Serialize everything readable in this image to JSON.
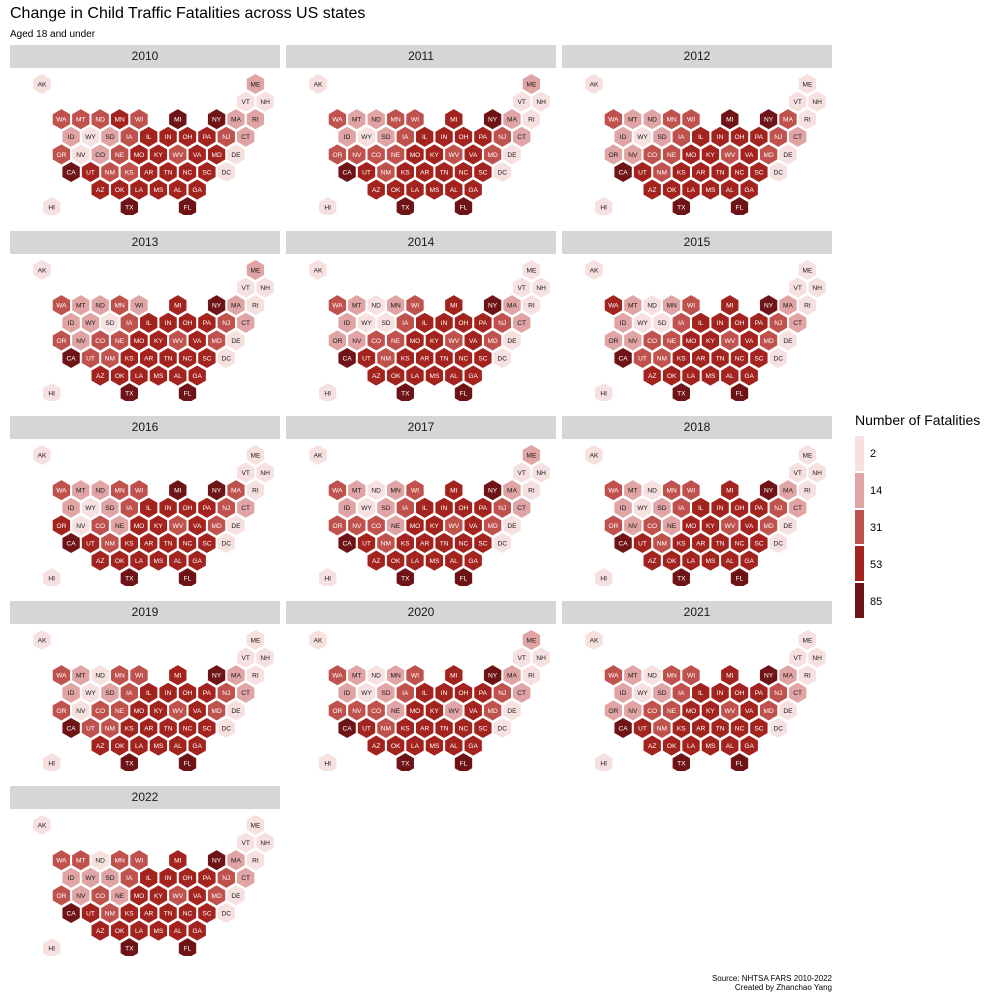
{
  "title": "Change in Child Traffic Fatalities across US states",
  "subtitle": "Aged 18 and under",
  "caption_source": "Source: NHTSA FARS 2010-2022",
  "caption_author": "Created by Zhanchao Yang",
  "colors": {
    "strip_background": "#d6d6d6",
    "hex_border": "#ffffff",
    "scale": [
      "#f6e0e0",
      "#e0a4a4",
      "#c0524e",
      "#a3231f",
      "#6e1416"
    ]
  },
  "chart_data": {
    "type": "heatmap",
    "subtype": "hexbin tile map, faceted by year",
    "measure": "Number of Fatalities",
    "legend": {
      "title": "Number of Fatalities",
      "breaks": [
        2,
        14,
        31,
        53,
        85
      ],
      "placement": "right",
      "colors": [
        "#f6e0e0",
        "#e0a4a4",
        "#c0524e",
        "#a3231f",
        "#6e1416"
      ]
    },
    "facets": [
      "2010",
      "2011",
      "2012",
      "2013",
      "2014",
      "2015",
      "2016",
      "2017",
      "2018",
      "2019",
      "2020",
      "2021",
      "2022"
    ],
    "states": [
      "AK",
      "ME",
      "VT",
      "NH",
      "WA",
      "MT",
      "ND",
      "MN",
      "WI",
      "MI",
      "NY",
      "MA",
      "RI",
      "ID",
      "WY",
      "SD",
      "IA",
      "IL",
      "IN",
      "OH",
      "PA",
      "NJ",
      "CT",
      "OR",
      "NV",
      "CO",
      "NE",
      "MO",
      "KY",
      "WV",
      "VA",
      "MD",
      "DE",
      "CA",
      "UT",
      "NM",
      "KS",
      "AR",
      "TN",
      "NC",
      "SC",
      "DC",
      "AZ",
      "OK",
      "LA",
      "MS",
      "AL",
      "GA",
      "HI",
      "TX",
      "FL"
    ],
    "color_level_by_year": {
      "note": "values are legend bin indices 0-4 (0 = about 2 fatalities, 4 = about 85 fatalities), estimated from hexagon shading",
      "2010": [
        0,
        1,
        0,
        0,
        2,
        2,
        2,
        3,
        2,
        4,
        4,
        1,
        1,
        1,
        0,
        1,
        2,
        3,
        3,
        3,
        3,
        2,
        1,
        2,
        0,
        1,
        2,
        3,
        3,
        2,
        3,
        3,
        0,
        4,
        3,
        2,
        2,
        3,
        3,
        3,
        3,
        0,
        3,
        3,
        3,
        3,
        3,
        3,
        0,
        4,
        4
      ],
      "2011": [
        0,
        1,
        0,
        0,
        2,
        1,
        1,
        2,
        2,
        3,
        4,
        1,
        0,
        1,
        0,
        1,
        2,
        3,
        3,
        3,
        3,
        2,
        1,
        2,
        2,
        2,
        2,
        3,
        3,
        2,
        3,
        2,
        0,
        4,
        3,
        2,
        3,
        3,
        3,
        3,
        3,
        0,
        3,
        3,
        3,
        3,
        3,
        3,
        0,
        4,
        4
      ],
      "2012": [
        0,
        0,
        0,
        0,
        2,
        1,
        1,
        2,
        2,
        4,
        4,
        2,
        0,
        1,
        0,
        1,
        2,
        3,
        3,
        3,
        3,
        2,
        1,
        1,
        1,
        2,
        2,
        3,
        3,
        2,
        3,
        2,
        0,
        4,
        3,
        2,
        3,
        3,
        3,
        3,
        3,
        0,
        3,
        3,
        3,
        3,
        3,
        3,
        0,
        4,
        4
      ],
      "2013": [
        0,
        1,
        0,
        0,
        2,
        1,
        1,
        2,
        1,
        3,
        4,
        1,
        0,
        1,
        1,
        0,
        2,
        3,
        3,
        3,
        3,
        2,
        1,
        2,
        1,
        2,
        2,
        3,
        3,
        2,
        3,
        2,
        0,
        4,
        2,
        2,
        3,
        3,
        3,
        3,
        3,
        0,
        3,
        3,
        3,
        3,
        3,
        3,
        0,
        4,
        4
      ],
      "2014": [
        0,
        0,
        0,
        0,
        2,
        1,
        0,
        1,
        2,
        3,
        4,
        1,
        0,
        1,
        0,
        0,
        2,
        3,
        3,
        3,
        3,
        2,
        1,
        1,
        1,
        2,
        2,
        3,
        3,
        2,
        3,
        2,
        0,
        4,
        3,
        2,
        3,
        3,
        3,
        3,
        3,
        0,
        3,
        3,
        3,
        3,
        3,
        3,
        0,
        4,
        4
      ],
      "2015": [
        0,
        0,
        0,
        0,
        3,
        1,
        0,
        1,
        2,
        3,
        4,
        1,
        0,
        1,
        0,
        0,
        2,
        3,
        3,
        3,
        3,
        2,
        1,
        1,
        1,
        2,
        2,
        3,
        3,
        2,
        3,
        2,
        0,
        4,
        2,
        2,
        3,
        3,
        3,
        3,
        3,
        0,
        3,
        3,
        3,
        3,
        3,
        3,
        0,
        4,
        4
      ],
      "2016": [
        0,
        0,
        0,
        0,
        2,
        1,
        1,
        2,
        2,
        4,
        4,
        2,
        0,
        1,
        0,
        1,
        2,
        3,
        3,
        3,
        3,
        2,
        1,
        3,
        0,
        2,
        1,
        3,
        3,
        2,
        3,
        2,
        0,
        4,
        3,
        2,
        3,
        3,
        3,
        3,
        3,
        0,
        3,
        3,
        3,
        3,
        3,
        3,
        0,
        4,
        4
      ],
      "2017": [
        0,
        1,
        0,
        0,
        2,
        1,
        0,
        1,
        2,
        3,
        4,
        1,
        0,
        1,
        0,
        1,
        2,
        3,
        3,
        3,
        3,
        2,
        1,
        2,
        2,
        2,
        1,
        3,
        3,
        2,
        3,
        2,
        0,
        4,
        3,
        2,
        3,
        3,
        3,
        3,
        3,
        0,
        3,
        3,
        3,
        3,
        3,
        3,
        0,
        4,
        4
      ],
      "2018": [
        0,
        0,
        0,
        0,
        2,
        1,
        0,
        2,
        2,
        3,
        4,
        1,
        0,
        1,
        0,
        1,
        2,
        3,
        3,
        3,
        3,
        2,
        1,
        2,
        1,
        2,
        1,
        3,
        3,
        2,
        3,
        2,
        0,
        4,
        3,
        2,
        3,
        3,
        3,
        3,
        3,
        0,
        3,
        3,
        3,
        3,
        3,
        3,
        0,
        4,
        4
      ],
      "2019": [
        0,
        0,
        0,
        0,
        2,
        1,
        0,
        2,
        2,
        3,
        4,
        1,
        0,
        1,
        0,
        1,
        2,
        3,
        3,
        3,
        3,
        2,
        1,
        2,
        0,
        2,
        2,
        3,
        3,
        2,
        3,
        2,
        0,
        4,
        2,
        2,
        3,
        3,
        3,
        3,
        3,
        0,
        3,
        3,
        3,
        3,
        3,
        3,
        0,
        4,
        4
      ],
      "2020": [
        0,
        1,
        0,
        0,
        2,
        1,
        0,
        1,
        2,
        3,
        4,
        1,
        0,
        1,
        0,
        1,
        2,
        3,
        3,
        3,
        3,
        2,
        1,
        2,
        2,
        2,
        1,
        3,
        3,
        1,
        3,
        2,
        0,
        4,
        3,
        2,
        3,
        3,
        3,
        3,
        3,
        0,
        3,
        3,
        3,
        3,
        3,
        3,
        0,
        4,
        4
      ],
      "2021": [
        0,
        0,
        0,
        0,
        2,
        1,
        0,
        2,
        2,
        3,
        4,
        1,
        0,
        1,
        0,
        1,
        2,
        3,
        3,
        3,
        3,
        2,
        1,
        1,
        1,
        2,
        2,
        3,
        3,
        2,
        3,
        2,
        0,
        4,
        3,
        2,
        3,
        3,
        3,
        3,
        3,
        0,
        3,
        3,
        3,
        3,
        3,
        3,
        0,
        4,
        4
      ],
      "2022": [
        0,
        0,
        0,
        0,
        2,
        2,
        0,
        2,
        2,
        3,
        4,
        1,
        0,
        1,
        1,
        1,
        2,
        3,
        3,
        3,
        3,
        2,
        1,
        2,
        1,
        2,
        1,
        3,
        3,
        2,
        3,
        2,
        0,
        4,
        3,
        2,
        3,
        3,
        3,
        3,
        3,
        0,
        3,
        3,
        3,
        3,
        3,
        3,
        0,
        4,
        4
      ]
    }
  }
}
